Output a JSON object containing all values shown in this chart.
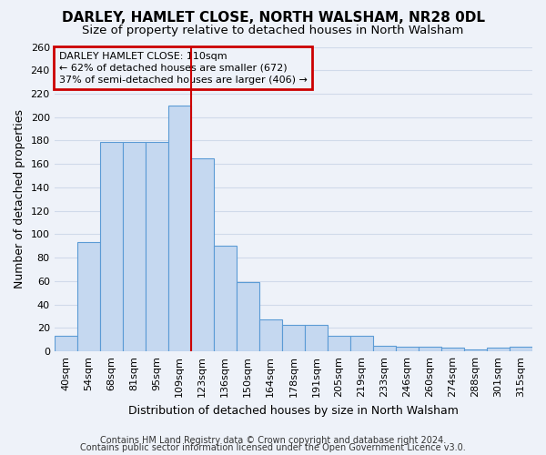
{
  "title1": "DARLEY, HAMLET CLOSE, NORTH WALSHAM, NR28 0DL",
  "title2": "Size of property relative to detached houses in North Walsham",
  "xlabel": "Distribution of detached houses by size in North Walsham",
  "ylabel": "Number of detached properties",
  "categories": [
    "40sqm",
    "54sqm",
    "68sqm",
    "81sqm",
    "95sqm",
    "109sqm",
    "123sqm",
    "136sqm",
    "150sqm",
    "164sqm",
    "178sqm",
    "191sqm",
    "205sqm",
    "219sqm",
    "233sqm",
    "246sqm",
    "260sqm",
    "274sqm",
    "288sqm",
    "301sqm",
    "315sqm"
  ],
  "values": [
    13,
    93,
    179,
    179,
    179,
    210,
    165,
    90,
    59,
    27,
    23,
    23,
    13,
    13,
    5,
    4,
    4,
    3,
    2,
    3,
    4
  ],
  "bar_color": "#c5d8f0",
  "bar_edge_color": "#5b9bd5",
  "vline_color": "#cc0000",
  "vline_index": 5,
  "annotation_title": "DARLEY HAMLET CLOSE: 110sqm",
  "annotation_line2": "← 62% of detached houses are smaller (672)",
  "annotation_line3": "37% of semi-detached houses are larger (406) →",
  "annotation_box_edge_color": "#cc0000",
  "ylim": [
    0,
    260
  ],
  "yticks": [
    0,
    20,
    40,
    60,
    80,
    100,
    120,
    140,
    160,
    180,
    200,
    220,
    240,
    260
  ],
  "footer1": "Contains HM Land Registry data © Crown copyright and database right 2024.",
  "footer2": "Contains public sector information licensed under the Open Government Licence v3.0.",
  "background_color": "#eef2f9",
  "grid_color": "#d0daea",
  "title1_fontsize": 11,
  "title2_fontsize": 9.5,
  "xlabel_fontsize": 9,
  "ylabel_fontsize": 9,
  "tick_fontsize": 8,
  "footer_fontsize": 7,
  "annotation_fontsize": 8
}
